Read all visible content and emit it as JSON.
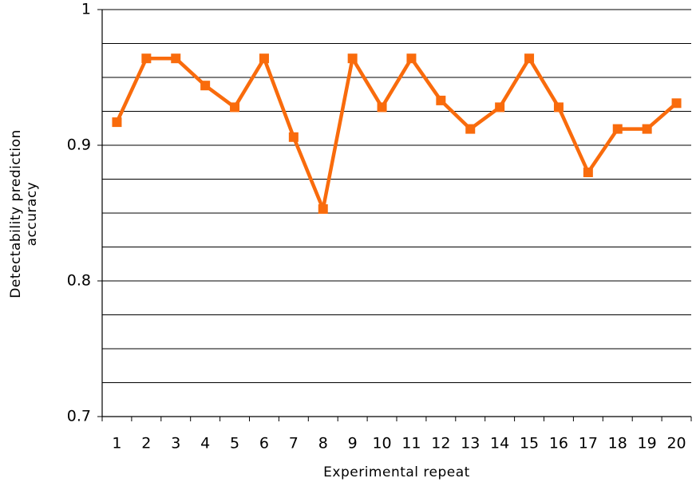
{
  "chart_data": {
    "type": "line",
    "xlabel": "Experimental repeat",
    "ylabel": [
      "Detectability prediction",
      "accuracy"
    ],
    "categories": [
      "1",
      "2",
      "3",
      "4",
      "5",
      "6",
      "7",
      "8",
      "9",
      "10",
      "11",
      "12",
      "13",
      "14",
      "15",
      "16",
      "17",
      "18",
      "19",
      "20"
    ],
    "series": [
      {
        "name": null,
        "color": "#f96b0c",
        "values": [
          0.917,
          0.964,
          0.964,
          0.944,
          0.928,
          0.964,
          0.906,
          0.853,
          0.964,
          0.928,
          0.964,
          0.933,
          0.912,
          0.928,
          0.964,
          0.928,
          0.88,
          0.912,
          0.912,
          0.931
        ]
      }
    ],
    "ylim": [
      0.7,
      1
    ],
    "yticks": [
      0.7,
      0.8,
      0.9,
      1
    ],
    "ygrid": [
      0.725,
      0.75,
      0.775,
      0.8,
      0.825,
      0.85,
      0.875,
      0.9,
      0.925,
      0.95,
      0.975,
      1
    ],
    "grid": true
  }
}
